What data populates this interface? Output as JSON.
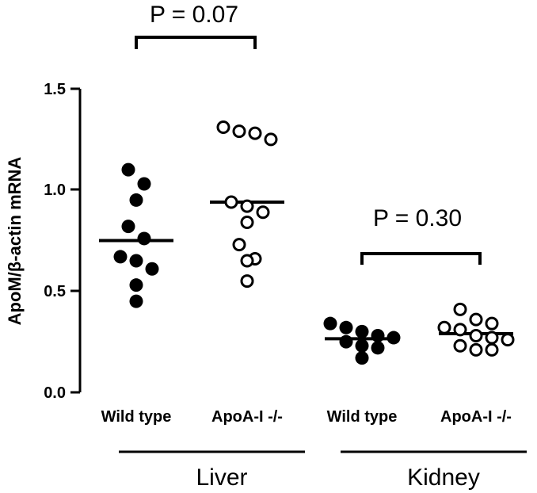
{
  "chart_data": {
    "type": "scatter",
    "ylabel": "ApoM/β-actin mRNA",
    "ylim": [
      0,
      1.5
    ],
    "yticks": [
      "0.0",
      "0.5",
      "1.0",
      "1.5"
    ],
    "categories": [
      "Wild type",
      "ApoA-I -/-",
      "Wild type",
      "ApoA-I -/-"
    ],
    "groups": [
      "Liver",
      "Kidney"
    ],
    "series": [
      {
        "category": "Wild type",
        "group": "Liver",
        "marker": "filled",
        "mean": 0.75,
        "values": [
          1.1,
          1.03,
          0.95,
          0.82,
          0.76,
          0.67,
          0.65,
          0.61,
          0.53,
          0.45
        ]
      },
      {
        "category": "ApoA-I -/-",
        "group": "Liver",
        "marker": "open",
        "mean": 0.94,
        "values": [
          1.31,
          1.29,
          1.28,
          1.25,
          0.94,
          0.92,
          0.89,
          0.84,
          0.73,
          0.66,
          0.65,
          0.55
        ]
      },
      {
        "category": "Wild type",
        "group": "Kidney",
        "marker": "filled",
        "mean": 0.265,
        "values": [
          0.34,
          0.32,
          0.3,
          0.28,
          0.27,
          0.25,
          0.23,
          0.22,
          0.17
        ]
      },
      {
        "category": "ApoA-I -/-",
        "group": "Kidney",
        "marker": "open",
        "mean": 0.29,
        "values": [
          0.41,
          0.36,
          0.34,
          0.32,
          0.31,
          0.28,
          0.27,
          0.26,
          0.23,
          0.21,
          0.21
        ]
      }
    ],
    "annotations": [
      {
        "text": "P = 0.07",
        "group": "Liver"
      },
      {
        "text": "P = 0.30",
        "group": "Kidney"
      }
    ]
  }
}
